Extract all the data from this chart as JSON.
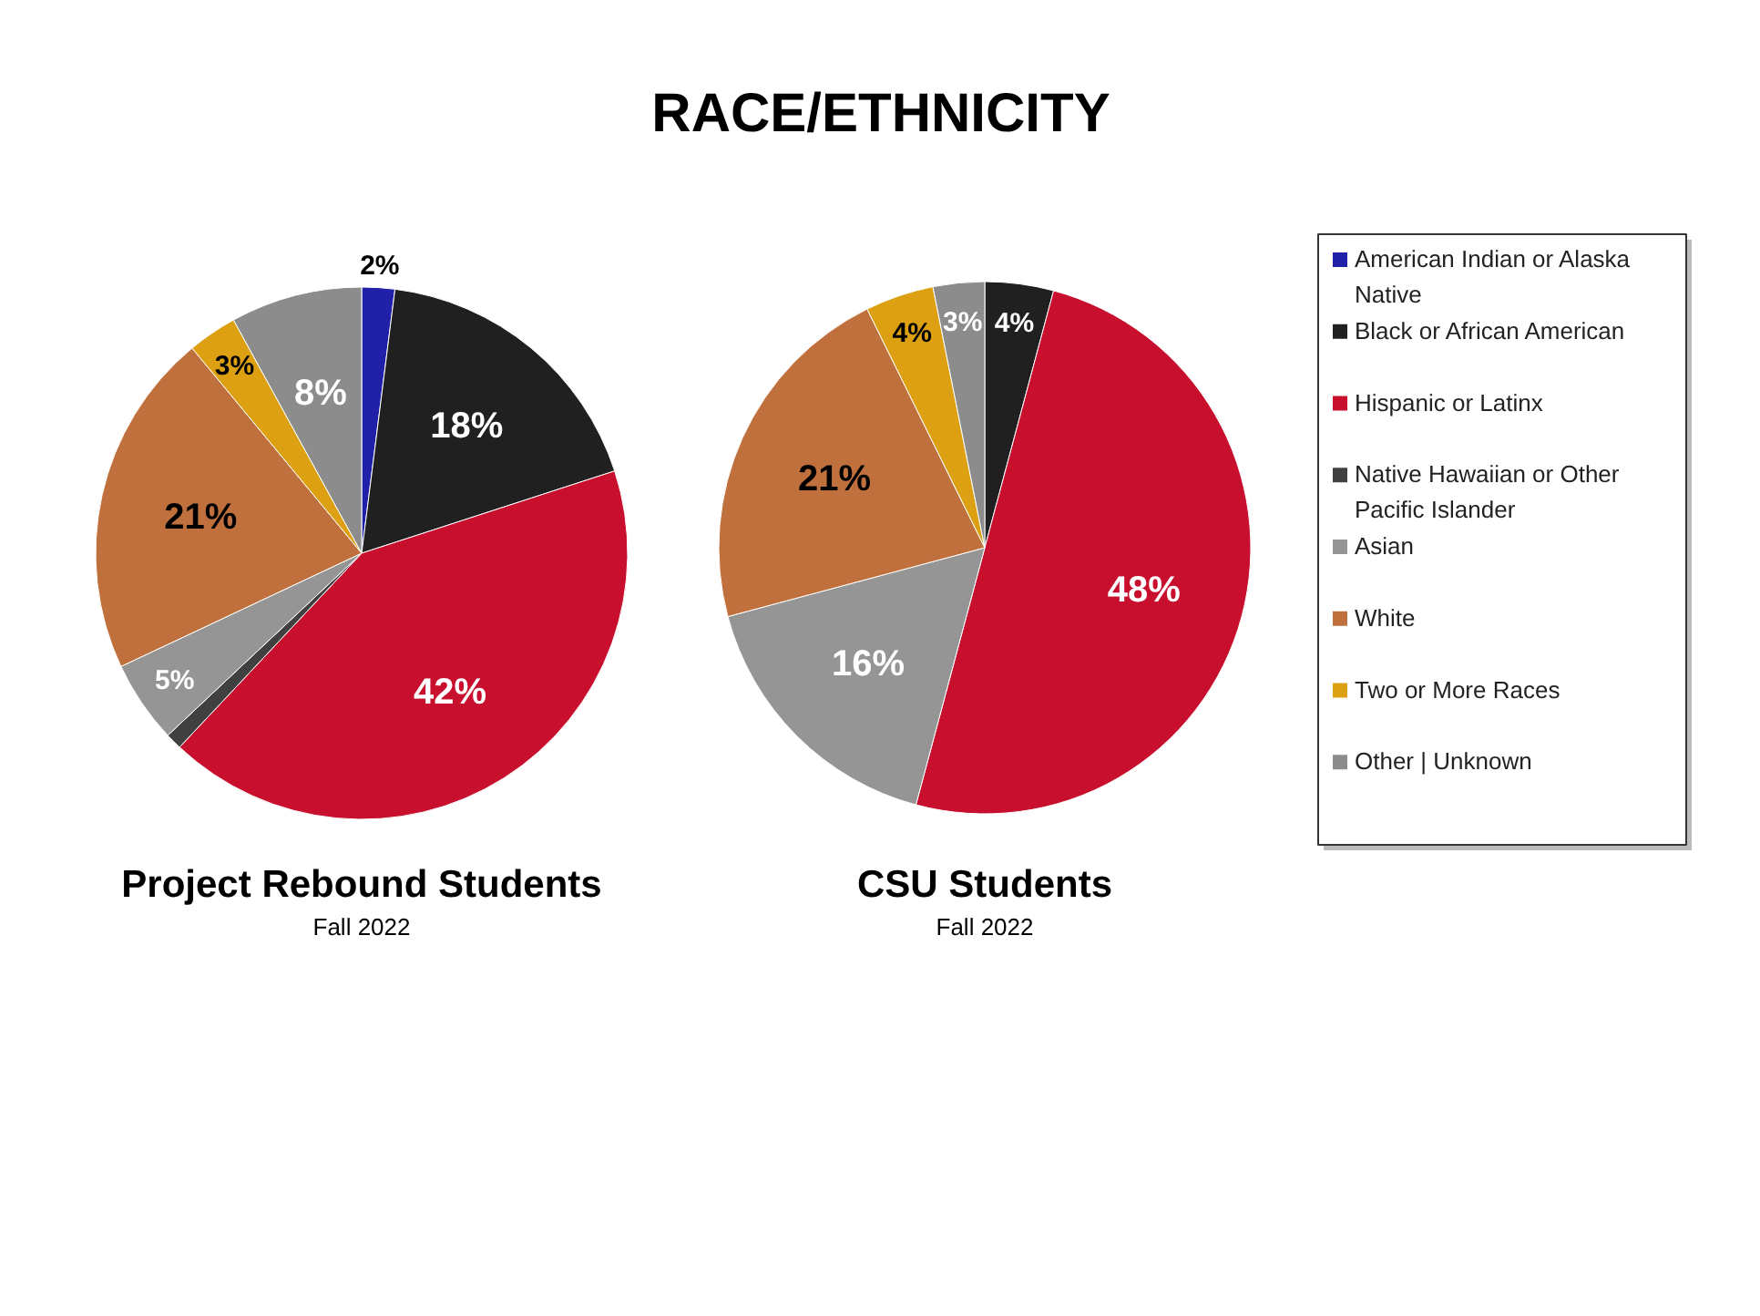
{
  "chart_data": [
    {
      "type": "pie",
      "title": "Project Rebound Students",
      "subtitle": "Fall 2022",
      "annotations": [
        "RACE/ETHNICITY"
      ],
      "categories": [
        "American Indian or Alaska Native",
        "Black or African American",
        "Hispanic or Latinx",
        "Native Hawaiian or Other Pacific Islander",
        "Asian",
        "White",
        "Two or More Races",
        "Other | Unknown"
      ],
      "values": [
        2,
        18,
        42,
        1,
        5,
        21,
        3,
        8
      ],
      "value_labels": [
        "2%",
        "18%",
        "42%",
        null,
        "5%",
        "21%",
        "3%",
        "8%"
      ],
      "colors": [
        "#2020a8",
        "#202020",
        "#c8102e",
        "#404040",
        "#959595",
        "#c0703c",
        "#dca012",
        "#8c8c8c"
      ],
      "legend": "right"
    },
    {
      "type": "pie",
      "title": "CSU Students",
      "subtitle": "Fall 2022",
      "categories": [
        null,
        null,
        null,
        null,
        null,
        null,
        null,
        null
      ],
      "values": [
        0,
        4,
        48,
        0,
        16,
        21,
        4,
        3
      ],
      "value_labels": [
        null,
        "4%",
        "48%",
        null,
        "16%",
        "21%",
        "4%",
        "3%"
      ],
      "colors": [
        "#2020a8",
        "#202020",
        "#c8102e",
        "#404040",
        "#959595",
        "#c0703c",
        "#dca012",
        "#8c8c8c"
      ],
      "legend": false
    }
  ]
}
